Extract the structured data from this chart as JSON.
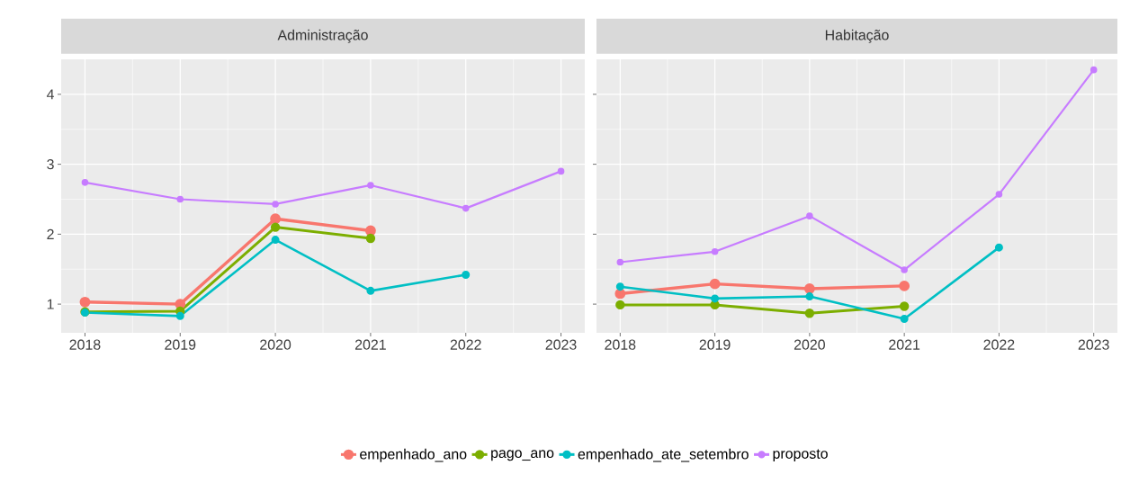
{
  "chart_data": [
    {
      "type": "line",
      "title": "Administração",
      "x": [
        2018,
        2019,
        2020,
        2021,
        2022,
        2023
      ],
      "xlim": [
        2017.75,
        2023.25
      ],
      "xticks": [
        2018,
        2019,
        2020,
        2021,
        2022,
        2023
      ],
      "ylim": [
        0.59,
        4.5
      ],
      "yticks": [
        1,
        2,
        3,
        4
      ],
      "grid": true,
      "marker": "circle",
      "legend": "bottom",
      "series": [
        {
          "name": "empenhado_ano",
          "color": "#f8766d",
          "values": [
            1.03,
            1.0,
            2.22,
            2.05,
            null,
            null
          ]
        },
        {
          "name": "pago_ano",
          "color": "#7cae00",
          "values": [
            0.89,
            0.9,
            2.1,
            1.94,
            null,
            null
          ]
        },
        {
          "name": "empenhado_ate_setembro",
          "color": "#00bfc4",
          "values": [
            0.88,
            0.83,
            1.92,
            1.19,
            1.42,
            null
          ]
        },
        {
          "name": "proposto",
          "color": "#c77cff",
          "values": [
            2.74,
            2.5,
            2.43,
            2.7,
            2.37,
            2.9
          ]
        }
      ]
    },
    {
      "type": "line",
      "title": "Habitação",
      "x": [
        2018,
        2019,
        2020,
        2021,
        2022,
        2023
      ],
      "xlim": [
        2017.75,
        2023.25
      ],
      "xticks": [
        2018,
        2019,
        2020,
        2021,
        2022,
        2023
      ],
      "ylim": [
        0.59,
        4.5
      ],
      "yticks": [
        1,
        2,
        3,
        4
      ],
      "grid": true,
      "marker": "circle",
      "tick_labels": "x",
      "series": [
        {
          "color": "#f8766d",
          "values": [
            1.15,
            1.29,
            1.22,
            1.26,
            null,
            null
          ]
        },
        {
          "color": "#7cae00",
          "values": [
            0.99,
            0.99,
            0.87,
            0.97,
            null,
            null
          ]
        },
        {
          "color": "#00bfc4",
          "values": [
            1.25,
            1.08,
            1.11,
            0.79,
            1.81,
            null
          ]
        },
        {
          "color": "#c77cff",
          "values": [
            1.6,
            1.75,
            2.26,
            1.49,
            2.57,
            4.35
          ]
        }
      ]
    }
  ]
}
